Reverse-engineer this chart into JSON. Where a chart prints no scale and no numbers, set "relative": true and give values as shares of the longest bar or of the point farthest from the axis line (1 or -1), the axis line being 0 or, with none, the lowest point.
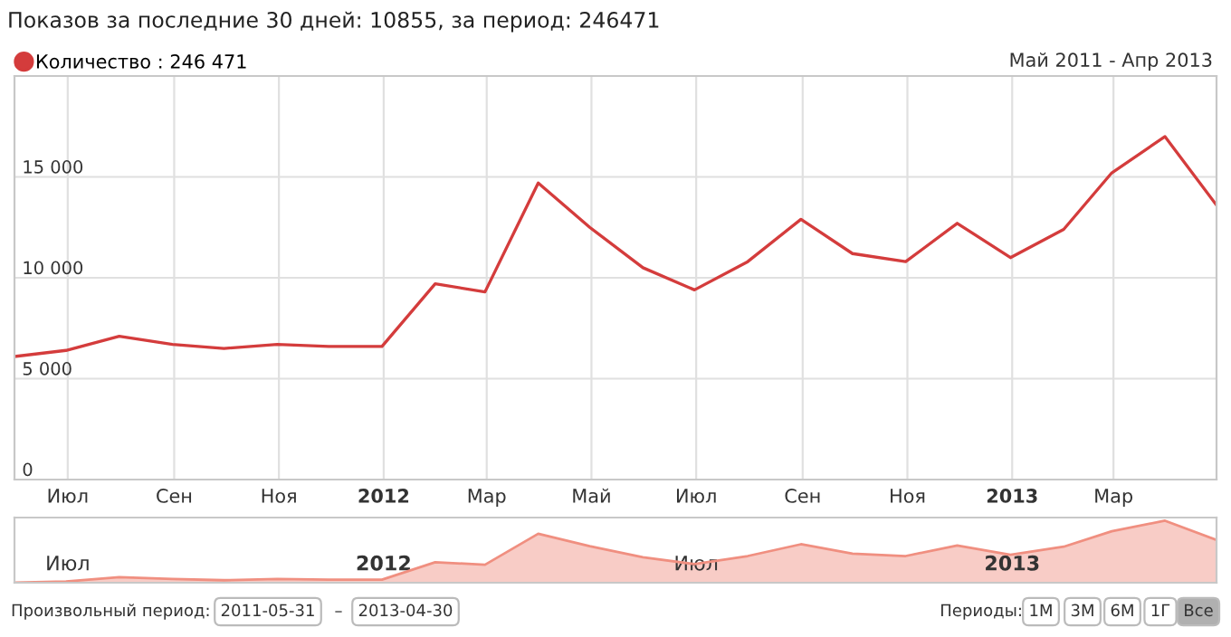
{
  "chart_data": [
    {
      "type": "line",
      "title": "Показов за последние 30 дней: 10855, за период: 246471",
      "subtitle": "Май 2011 - Апр 2013",
      "x": [
        "2011-05-31",
        "2011-06-30",
        "2011-07-31",
        "2011-08-31",
        "2011-09-30",
        "2011-10-31",
        "2011-11-30",
        "2011-12-31",
        "2012-01-31",
        "2012-02-29",
        "2012-03-31",
        "2012-04-30",
        "2012-05-31",
        "2012-06-30",
        "2012-07-31",
        "2012-08-31",
        "2012-09-30",
        "2012-10-31",
        "2012-11-30",
        "2012-12-31",
        "2013-01-31",
        "2013-02-28",
        "2013-03-31",
        "2013-04-30"
      ],
      "series": [
        {
          "name": "Количество : 246 471",
          "color": "#d43c3c",
          "values": [
            6100,
            6400,
            7100,
            6700,
            6500,
            6700,
            6600,
            6600,
            9700,
            9300,
            14700,
            12500,
            10500,
            9400,
            10800,
            12900,
            11200,
            10800,
            12700,
            11000,
            12400,
            15200,
            17000,
            13600
          ]
        }
      ],
      "xlim": [
        "2011-05-31",
        "2013-04-30"
      ],
      "xticks": [
        {
          "value": "2011-07-01",
          "label": "Июл"
        },
        {
          "value": "2011-09-01",
          "label": "Сен"
        },
        {
          "value": "2011-11-01",
          "label": "Ноя"
        },
        {
          "value": "2012-01-01",
          "label": "2012"
        },
        {
          "value": "2012-03-01",
          "label": "Мар"
        },
        {
          "value": "2012-05-01",
          "label": "Май"
        },
        {
          "value": "2012-07-01",
          "label": "Июл"
        },
        {
          "value": "2012-09-01",
          "label": "Сен"
        },
        {
          "value": "2012-11-01",
          "label": "Ноя"
        },
        {
          "value": "2013-01-01",
          "label": "2013"
        },
        {
          "value": "2013-03-01",
          "label": "Мар"
        }
      ],
      "ylim": [
        0,
        20000
      ],
      "yticks": [
        0,
        {
          "value": 5000,
          "label": "5 000"
        },
        {
          "value": 10000,
          "label": "10 000"
        },
        {
          "value": 15000,
          "label": "15 000"
        }
      ],
      "grid": true,
      "legend": "top left",
      "marker": "none",
      "line_style": "solid"
    },
    {
      "type": "area",
      "relative": true,
      "x": [
        "2011-05-31",
        "2011-06-30",
        "2011-07-31",
        "2011-08-31",
        "2011-09-30",
        "2011-10-31",
        "2011-11-30",
        "2011-12-31",
        "2012-01-31",
        "2012-02-29",
        "2012-03-31",
        "2012-04-30",
        "2012-05-31",
        "2012-06-30",
        "2012-07-31",
        "2012-08-31",
        "2012-09-30",
        "2012-10-31",
        "2012-11-30",
        "2012-12-31",
        "2013-01-31",
        "2013-02-28",
        "2013-03-31",
        "2013-04-30"
      ],
      "series": [
        {
          "color": "#f08f80",
          "values": [
            0,
            0.02,
            0.09,
            0.06,
            0.04,
            0.06,
            0.05,
            0.05,
            0.33,
            0.29,
            0.79,
            0.59,
            0.41,
            0.3,
            0.43,
            0.62,
            0.47,
            0.43,
            0.6,
            0.45,
            0.58,
            0.83,
            1,
            0.69
          ]
        }
      ],
      "xlim": [
        "2011-05-31",
        "2013-04-30"
      ],
      "xticks": [
        {
          "value": "2011-07-01",
          "label": "Июл"
        },
        {
          "value": "2012-01-01",
          "label": "2012"
        },
        {
          "value": "2012-07-01",
          "label": "Июл"
        },
        {
          "value": "2013-01-01",
          "label": "2013"
        }
      ],
      "annotations": [
        "Произвольный период:",
        "2011-05-31",
        "–",
        "2013-04-30",
        "Периоды:",
        "1М",
        "3М",
        "6М",
        "1Г",
        "Все"
      ]
    }
  ]
}
